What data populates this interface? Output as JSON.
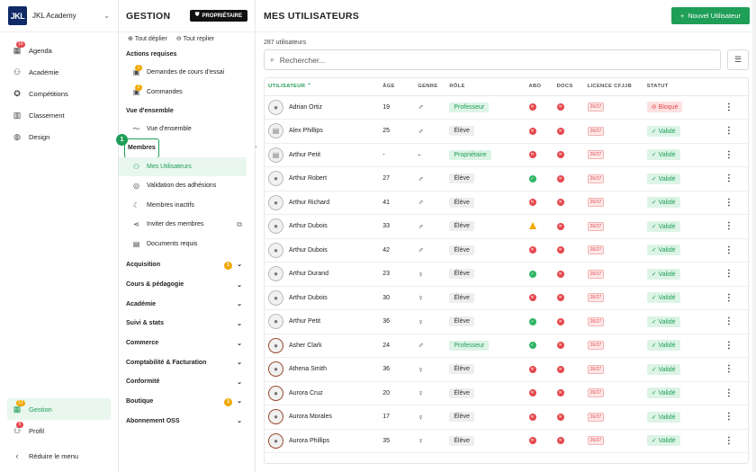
{
  "brand": {
    "logo": "JKL",
    "name": "JKL Academy"
  },
  "leftnav": {
    "items": [
      {
        "label": "Agenda",
        "icon": "calendar-icon",
        "glyph": "▦",
        "badge": "19",
        "badge_color": "red"
      },
      {
        "label": "Académie",
        "icon": "users-icon",
        "glyph": "⚇"
      },
      {
        "label": "Compétitions",
        "icon": "trophy-icon",
        "glyph": "✪"
      },
      {
        "label": "Classement",
        "icon": "ranking-icon",
        "glyph": "▥"
      },
      {
        "label": "Design",
        "icon": "palette-icon",
        "glyph": "◍"
      }
    ],
    "bottom": [
      {
        "label": "Gestion",
        "icon": "grid-icon",
        "glyph": "▦",
        "badge": "13",
        "badge_color": "orange",
        "active": true
      },
      {
        "label": "Profil",
        "icon": "user-icon",
        "glyph": "⚇",
        "badge": "6",
        "badge_color": "red"
      },
      {
        "label": "Réduire le menu",
        "icon": "chevron-left-icon",
        "glyph": "‹"
      }
    ]
  },
  "panel": {
    "title": "GESTION",
    "owner_badge": "PROPRIÉTAIRE",
    "expand_all": "Tout déplier",
    "collapse_all": "Tout replier",
    "actions_title": "Actions requises",
    "actions": [
      {
        "label": "Demandes de cours d'essai",
        "badge": "1"
      },
      {
        "label": "Commandes",
        "badge": "2"
      }
    ],
    "overview_title": "Vue d'ensemble",
    "overview_item": "Vue d'ensemble",
    "step_number": "1",
    "members_title": "Membres",
    "members": [
      {
        "label": "Mes Utilisateurs",
        "icon": "users-icon",
        "glyph": "⚇",
        "active": true
      },
      {
        "label": "Validation des adhésions",
        "icon": "check-badge-icon",
        "glyph": "◎"
      },
      {
        "label": "Membres inactifs",
        "icon": "moon-icon",
        "glyph": "☾"
      },
      {
        "label": "Inviter des membres",
        "icon": "share-icon",
        "glyph": "⋖"
      },
      {
        "label": "Documents requis",
        "icon": "document-icon",
        "glyph": "▤"
      }
    ],
    "sections": [
      {
        "label": "Acquisition",
        "badge": "1"
      },
      {
        "label": "Cours & pédagogie"
      },
      {
        "label": "Académie"
      },
      {
        "label": "Suivi & stats"
      },
      {
        "label": "Commerce"
      },
      {
        "label": "Comptabilité & Facturation"
      },
      {
        "label": "Conformité"
      },
      {
        "label": "Boutique",
        "badge": "1"
      },
      {
        "label": "Abonnement OSS"
      }
    ]
  },
  "main": {
    "title": "MES UTILISATEURS",
    "new_button": "Nouvel Utilisateur",
    "count": "287 utilisateurs",
    "search_placeholder": "Rechercher...",
    "columns": [
      "UTILISATEUR",
      "ÂGE",
      "GENRE",
      "RÔLE",
      "ABO",
      "DOCS",
      "LICENCE CFJJB",
      "STATUT"
    ],
    "rows": [
      {
        "name": "Adrian Ortiz",
        "age": "19",
        "gender": "♂",
        "role": "Professeur",
        "abo": "red",
        "docs": "red",
        "licence": "26/27",
        "status": "Bloqué",
        "avatar": "plain"
      },
      {
        "name": "Alex Phillips",
        "age": "25",
        "gender": "♂",
        "role": "Élève",
        "abo": "red",
        "docs": "red",
        "licence": "26/27",
        "status": "Validé",
        "avatar": "doc"
      },
      {
        "name": "Arthur Petit",
        "age": "-",
        "gender": "-",
        "role": "Propriétaire",
        "abo": "red",
        "docs": "red",
        "licence": "26/27",
        "status": "Validé",
        "avatar": "doc"
      },
      {
        "name": "Arthur Robert",
        "age": "27",
        "gender": "♂",
        "role": "Élève",
        "abo": "green",
        "docs": "red",
        "licence": "26/27",
        "status": "Validé",
        "avatar": "plain"
      },
      {
        "name": "Arthur Richard",
        "age": "41",
        "gender": "♂",
        "role": "Élève",
        "abo": "red",
        "docs": "red",
        "licence": "26/27",
        "status": "Validé",
        "avatar": "plain"
      },
      {
        "name": "Arthur Dubois",
        "age": "33",
        "gender": "♂",
        "role": "Élève",
        "abo": "warn",
        "docs": "red",
        "licence": "26/27",
        "status": "Validé",
        "avatar": "plain"
      },
      {
        "name": "Arthur Dubois",
        "age": "42",
        "gender": "♂",
        "role": "Élève",
        "abo": "red",
        "docs": "red",
        "licence": "26/27",
        "status": "Validé",
        "avatar": "plain"
      },
      {
        "name": "Arthur Durand",
        "age": "23",
        "gender": "♀",
        "role": "Élève",
        "abo": "green",
        "docs": "red",
        "licence": "26/27",
        "status": "Validé",
        "avatar": "plain"
      },
      {
        "name": "Arthur Dubois",
        "age": "30",
        "gender": "♀",
        "role": "Élève",
        "abo": "red",
        "docs": "red",
        "licence": "26/27",
        "status": "Validé",
        "avatar": "plain"
      },
      {
        "name": "Arthur Petit",
        "age": "36",
        "gender": "♀",
        "role": "Élève",
        "abo": "green",
        "docs": "red",
        "licence": "26/27",
        "status": "Validé",
        "avatar": "plain"
      },
      {
        "name": "Asher Clark",
        "age": "24",
        "gender": "♂",
        "role": "Professeur",
        "abo": "green",
        "docs": "red",
        "licence": "26/27",
        "status": "Validé",
        "avatar": "brown"
      },
      {
        "name": "Athena Smith",
        "age": "36",
        "gender": "♀",
        "role": "Élève",
        "abo": "red",
        "docs": "red",
        "licence": "26/27",
        "status": "Validé",
        "avatar": "brown"
      },
      {
        "name": "Aurora Cruz",
        "age": "20",
        "gender": "♀",
        "role": "Élève",
        "abo": "red",
        "docs": "red",
        "licence": "26/27",
        "status": "Validé",
        "avatar": "brown"
      },
      {
        "name": "Aurora Morales",
        "age": "17",
        "gender": "♀",
        "role": "Élève",
        "abo": "red",
        "docs": "red",
        "licence": "26/27",
        "status": "Validé",
        "avatar": "brown"
      },
      {
        "name": "Aurora Phillips",
        "age": "35",
        "gender": "♀",
        "role": "Élève",
        "abo": "red",
        "docs": "red",
        "licence": "26/27",
        "status": "Validé",
        "avatar": "brown"
      }
    ]
  }
}
